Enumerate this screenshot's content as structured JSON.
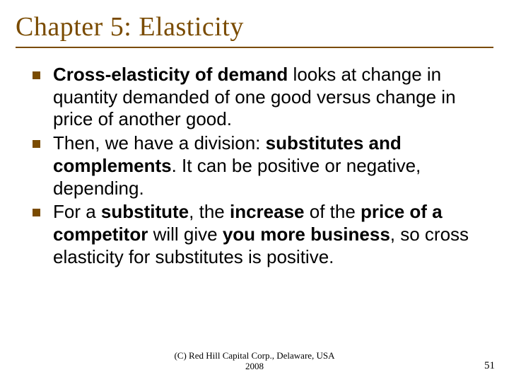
{
  "slide": {
    "title": "Chapter 5: Elasticity",
    "bullets": [
      {
        "segments": [
          {
            "t": "Cross-elasticity of demand",
            "b": true
          },
          {
            "t": " looks at change in quantity demanded of one good versus change in price of another good.",
            "b": false
          }
        ]
      },
      {
        "segments": [
          {
            "t": "Then, we have a division: ",
            "b": false
          },
          {
            "t": "substitutes and complements",
            "b": true
          },
          {
            "t": ". It can be positive or negative, depending.",
            "b": false
          }
        ]
      },
      {
        "segments": [
          {
            "t": "For a ",
            "b": false
          },
          {
            "t": "substitute",
            "b": true
          },
          {
            "t": ", the ",
            "b": false
          },
          {
            "t": "increase",
            "b": true
          },
          {
            "t": " of the ",
            "b": false
          },
          {
            "t": "price of a competitor",
            "b": true
          },
          {
            "t": " will give ",
            "b": false
          },
          {
            "t": "you more business",
            "b": true
          },
          {
            "t": ", so cross elasticity for substitutes is positive.",
            "b": false
          }
        ]
      }
    ],
    "footer_line1": "(C) Red Hill Capital Corp., Delaware, USA",
    "footer_line2": "2008",
    "page_number": "51",
    "colors": {
      "accent": "#7a4b00",
      "text": "#000000",
      "background": "#ffffff"
    },
    "fonts": {
      "title_family": "Garamond",
      "title_size_pt": 38,
      "body_family": "Arial",
      "body_size_pt": 26,
      "footer_size_pt": 13
    }
  }
}
